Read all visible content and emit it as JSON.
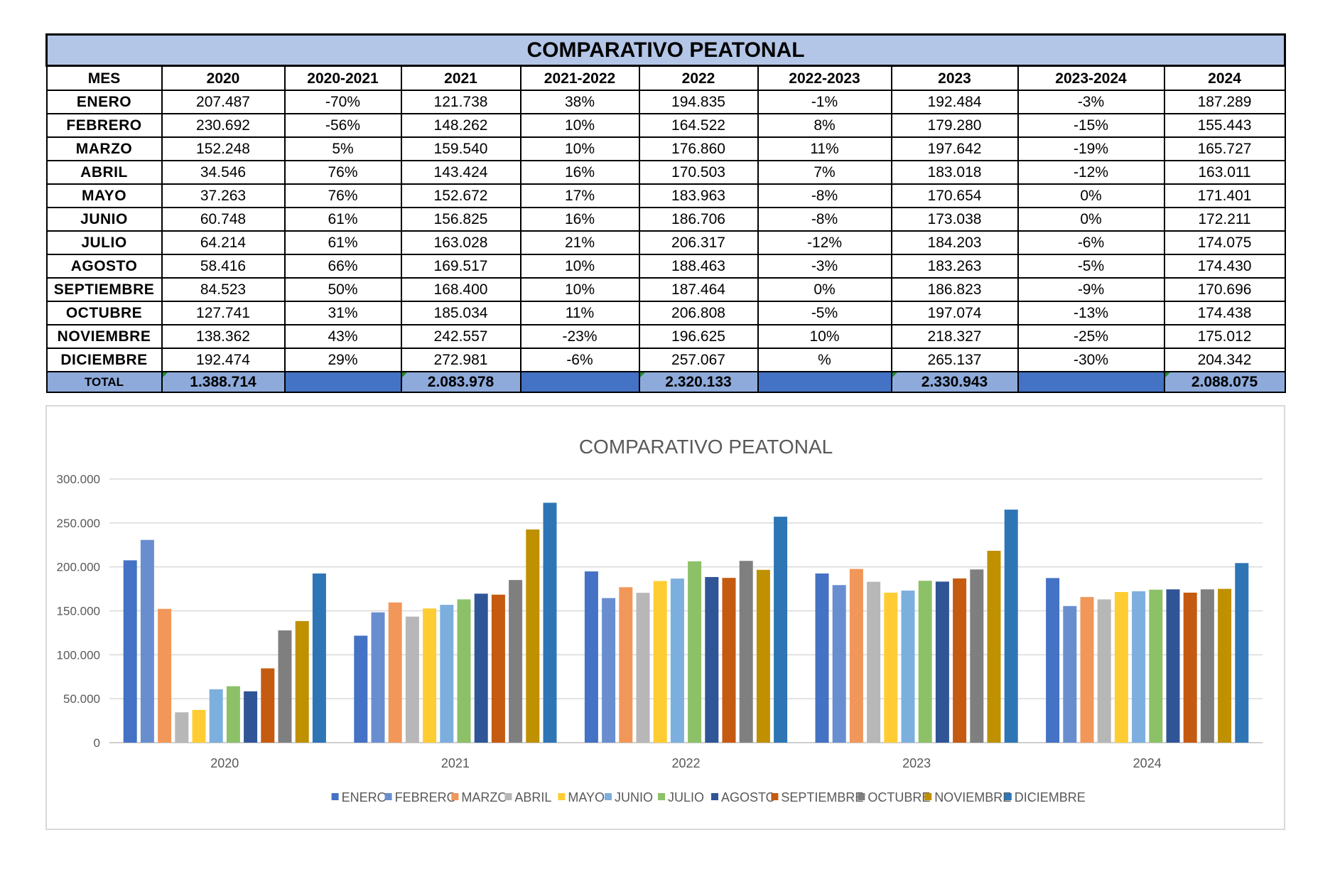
{
  "table": {
    "title": "COMPARATIVO PEATONAL",
    "headers": [
      "MES",
      "2020",
      "2020-2021",
      "2021",
      "2021-2022",
      "2022",
      "2022-2023",
      "2023",
      "2023-2024",
      "2024"
    ],
    "rows": [
      [
        "ENERO",
        "207.487",
        "-70%",
        "121.738",
        "38%",
        "194.835",
        "-1%",
        "192.484",
        "-3%",
        "187.289"
      ],
      [
        "FEBRERO",
        "230.692",
        "-56%",
        "148.262",
        "10%",
        "164.522",
        "8%",
        "179.280",
        "-15%",
        "155.443"
      ],
      [
        "MARZO",
        "152.248",
        "5%",
        "159.540",
        "10%",
        "176.860",
        "11%",
        "197.642",
        "-19%",
        "165.727"
      ],
      [
        "ABRIL",
        "34.546",
        "76%",
        "143.424",
        "16%",
        "170.503",
        "7%",
        "183.018",
        "-12%",
        "163.011"
      ],
      [
        "MAYO",
        "37.263",
        "76%",
        "152.672",
        "17%",
        "183.963",
        "-8%",
        "170.654",
        "0%",
        "171.401"
      ],
      [
        "JUNIO",
        "60.748",
        "61%",
        "156.825",
        "16%",
        "186.706",
        "-8%",
        "173.038",
        "0%",
        "172.211"
      ],
      [
        "JULIO",
        "64.214",
        "61%",
        "163.028",
        "21%",
        "206.317",
        "-12%",
        "184.203",
        "-6%",
        "174.075"
      ],
      [
        "AGOSTO",
        "58.416",
        "66%",
        "169.517",
        "10%",
        "188.463",
        "-3%",
        "183.263",
        "-5%",
        "174.430"
      ],
      [
        "SEPTIEMBRE",
        "84.523",
        "50%",
        "168.400",
        "10%",
        "187.464",
        "0%",
        "186.823",
        "-9%",
        "170.696"
      ],
      [
        "OCTUBRE",
        "127.741",
        "31%",
        "185.034",
        "11%",
        "206.808",
        "-5%",
        "197.074",
        "-13%",
        "174.438"
      ],
      [
        "NOVIEMBRE",
        "138.362",
        "43%",
        "242.557",
        "-23%",
        "196.625",
        "10%",
        "218.327",
        "-25%",
        "175.012"
      ],
      [
        "DICIEMBRE",
        "192.474",
        "29%",
        "272.981",
        "-6%",
        "257.067",
        "%",
        "265.137",
        "-30%",
        "204.342"
      ]
    ],
    "total_row": [
      "TOTAL",
      "1.388.714",
      "",
      "2.083.978",
      "",
      "2.320.133",
      "",
      "2.330.943",
      "",
      "2.088.075"
    ]
  },
  "chart_data": {
    "type": "bar",
    "title": "COMPARATIVO PEATONAL",
    "categories": [
      "2020",
      "2021",
      "2022",
      "2023",
      "2024"
    ],
    "ylim": [
      0,
      300000
    ],
    "yticks": [
      0,
      50000,
      100000,
      150000,
      200000,
      250000,
      300000
    ],
    "ytick_labels": [
      "0",
      "50.000",
      "100.000",
      "150.000",
      "200.000",
      "250.000",
      "300.000"
    ],
    "grid": true,
    "legend_position": "bottom",
    "series": [
      {
        "name": "ENERO",
        "color": "#4472c4",
        "values": [
          207487,
          121738,
          194835,
          192484,
          187289
        ]
      },
      {
        "name": "FEBRERO",
        "color": "#698ed0",
        "values": [
          230692,
          148262,
          164522,
          179280,
          155443
        ]
      },
      {
        "name": "MARZO",
        "color": "#f1975a",
        "values": [
          152248,
          159540,
          176860,
          197642,
          165727
        ]
      },
      {
        "name": "ABRIL",
        "color": "#b7b7b7",
        "values": [
          34546,
          143424,
          170503,
          183018,
          163011
        ]
      },
      {
        "name": "MAYO",
        "color": "#ffcd33",
        "values": [
          37263,
          152672,
          183963,
          170654,
          171401
        ]
      },
      {
        "name": "JUNIO",
        "color": "#7cafdd",
        "values": [
          60748,
          156825,
          186706,
          173038,
          172211
        ]
      },
      {
        "name": "JULIO",
        "color": "#8cc168",
        "values": [
          64214,
          163028,
          206317,
          184203,
          174075
        ]
      },
      {
        "name": "AGOSTO",
        "color": "#2f5597",
        "values": [
          58416,
          169517,
          188463,
          183263,
          174430
        ]
      },
      {
        "name": "SEPTIEMBRE",
        "color": "#c55a11",
        "values": [
          84523,
          168400,
          187464,
          186823,
          170696
        ]
      },
      {
        "name": "OCTUBRE",
        "color": "#7f7f7f",
        "values": [
          127741,
          185034,
          206808,
          197074,
          174438
        ]
      },
      {
        "name": "NOVIEMBRE",
        "color": "#bf9000",
        "values": [
          138362,
          242557,
          196625,
          218327,
          175012
        ]
      },
      {
        "name": "DICIEMBRE",
        "color": "#2e75b6",
        "values": [
          192474,
          272981,
          257067,
          265137,
          204342
        ]
      }
    ]
  }
}
